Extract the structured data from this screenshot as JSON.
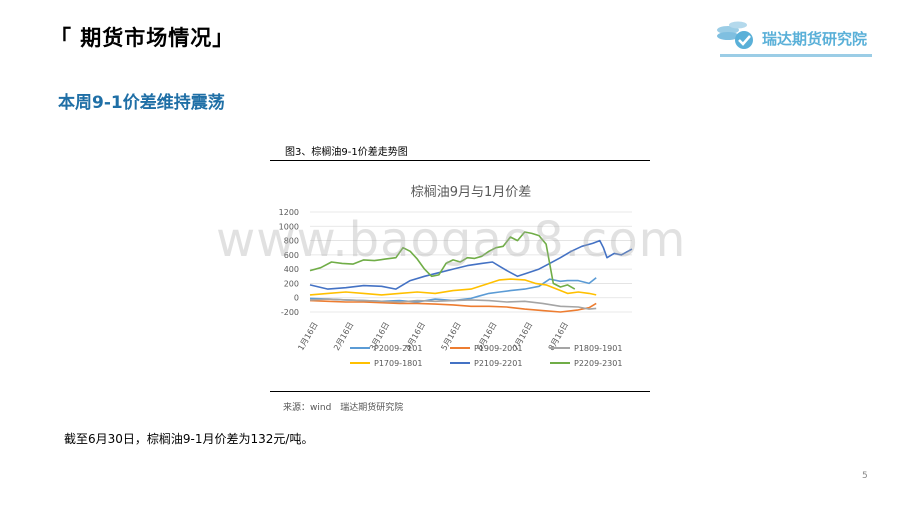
{
  "header": {
    "title": "「 期货市场情况」"
  },
  "logo": {
    "text": "瑞达期货研究院",
    "icon": "coins-check-icon",
    "color": "#5ab0d8"
  },
  "section": {
    "title": "本周9-1价差维持震荡"
  },
  "figure": {
    "caption": "图3、棕榈油9-1价差走势图",
    "source": "来源：wind　瑞达期货研究院"
  },
  "conclusion": "截至6月30日，棕榈油9-1月价差为132元/吨。",
  "page_number": "5",
  "watermark": "www.baogao8.com",
  "chart_data": {
    "type": "line",
    "title": "棕榈油9月与1月价差",
    "ylim": [
      -200,
      1200
    ],
    "yticks": [
      -200,
      0,
      200,
      400,
      600,
      800,
      1000,
      1200
    ],
    "x_tick_labels": [
      "1月16日",
      "2月16日",
      "3月16日",
      "4月16日",
      "5月16日",
      "6月16日",
      "7月16日",
      "8月16日"
    ],
    "x_count": 8,
    "legend_position": "bottom",
    "series": [
      {
        "name": "P2009-2101",
        "color": "#5b9bd5",
        "points": [
          [
            0,
            -10
          ],
          [
            0.5,
            -20
          ],
          [
            1,
            -30
          ],
          [
            1.5,
            -40
          ],
          [
            2,
            -50
          ],
          [
            2.5,
            -40
          ],
          [
            3,
            -60
          ],
          [
            3.5,
            -20
          ],
          [
            4,
            -40
          ],
          [
            4.5,
            -10
          ],
          [
            4.7,
            20
          ],
          [
            5,
            60
          ],
          [
            5.3,
            80
          ],
          [
            5.6,
            100
          ],
          [
            6,
            120
          ],
          [
            6.4,
            160
          ],
          [
            6.7,
            260
          ],
          [
            7,
            230
          ],
          [
            7.2,
            240
          ],
          [
            7.5,
            240
          ],
          [
            7.8,
            200
          ],
          [
            8,
            280
          ]
        ]
      },
      {
        "name": "P1909-2001",
        "color": "#ed7d31",
        "points": [
          [
            0,
            -40
          ],
          [
            0.5,
            -50
          ],
          [
            1,
            -60
          ],
          [
            1.5,
            -60
          ],
          [
            2,
            -70
          ],
          [
            2.5,
            -80
          ],
          [
            3,
            -80
          ],
          [
            3.5,
            -90
          ],
          [
            4,
            -100
          ],
          [
            4.5,
            -120
          ],
          [
            5,
            -120
          ],
          [
            5.5,
            -130
          ],
          [
            6,
            -160
          ],
          [
            6.5,
            -180
          ],
          [
            7,
            -200
          ],
          [
            7.5,
            -170
          ],
          [
            7.8,
            -140
          ],
          [
            8,
            -80
          ]
        ]
      },
      {
        "name": "P1809-1901",
        "color": "#a5a5a5",
        "points": [
          [
            0,
            -30
          ],
          [
            0.5,
            -20
          ],
          [
            1,
            -30
          ],
          [
            1.5,
            -40
          ],
          [
            2,
            -50
          ],
          [
            2.5,
            -60
          ],
          [
            3,
            -40
          ],
          [
            3.5,
            -50
          ],
          [
            4,
            -40
          ],
          [
            4.5,
            -30
          ],
          [
            5,
            -40
          ],
          [
            5.5,
            -60
          ],
          [
            6,
            -50
          ],
          [
            6.5,
            -80
          ],
          [
            7,
            -120
          ],
          [
            7.5,
            -130
          ],
          [
            7.8,
            -160
          ],
          [
            8,
            -150
          ]
        ]
      },
      {
        "name": "P1709-1801",
        "color": "#ffc000",
        "points": [
          [
            0,
            40
          ],
          [
            0.5,
            60
          ],
          [
            1,
            80
          ],
          [
            1.5,
            60
          ],
          [
            2,
            40
          ],
          [
            2.5,
            60
          ],
          [
            3,
            80
          ],
          [
            3.5,
            60
          ],
          [
            4,
            100
          ],
          [
            4.5,
            120
          ],
          [
            5,
            200
          ],
          [
            5.3,
            250
          ],
          [
            5.6,
            260
          ],
          [
            6,
            250
          ],
          [
            6.3,
            200
          ],
          [
            6.6,
            180
          ],
          [
            6.9,
            120
          ],
          [
            7.2,
            60
          ],
          [
            7.5,
            80
          ],
          [
            7.8,
            60
          ],
          [
            8,
            40
          ]
        ]
      },
      {
        "name": "P2109-2201",
        "color": "#4472c4",
        "points": [
          [
            0,
            180
          ],
          [
            0.5,
            120
          ],
          [
            1,
            140
          ],
          [
            1.5,
            170
          ],
          [
            2,
            160
          ],
          [
            2.4,
            120
          ],
          [
            2.8,
            240
          ],
          [
            3.2,
            300
          ],
          [
            3.6,
            350
          ],
          [
            4,
            400
          ],
          [
            4.4,
            450
          ],
          [
            4.8,
            480
          ],
          [
            5.1,
            500
          ],
          [
            5.3,
            440
          ],
          [
            5.5,
            380
          ],
          [
            5.8,
            300
          ],
          [
            6.1,
            350
          ],
          [
            6.4,
            400
          ],
          [
            6.7,
            480
          ],
          [
            7,
            560
          ],
          [
            7.3,
            650
          ],
          [
            7.6,
            720
          ],
          [
            7.9,
            760
          ],
          [
            8.1,
            800
          ],
          [
            8.2,
            700
          ],
          [
            8.3,
            560
          ],
          [
            8.5,
            620
          ],
          [
            8.7,
            600
          ],
          [
            9,
            680
          ]
        ]
      },
      {
        "name": "P2209-2301",
        "color": "#70ad47",
        "points": [
          [
            0,
            380
          ],
          [
            0.3,
            420
          ],
          [
            0.6,
            500
          ],
          [
            0.9,
            480
          ],
          [
            1.2,
            470
          ],
          [
            1.5,
            530
          ],
          [
            1.8,
            520
          ],
          [
            2.1,
            540
          ],
          [
            2.4,
            560
          ],
          [
            2.6,
            700
          ],
          [
            2.8,
            650
          ],
          [
            3,
            540
          ],
          [
            3.2,
            400
          ],
          [
            3.4,
            300
          ],
          [
            3.6,
            320
          ],
          [
            3.8,
            480
          ],
          [
            4,
            530
          ],
          [
            4.2,
            500
          ],
          [
            4.4,
            560
          ],
          [
            4.6,
            550
          ],
          [
            4.8,
            580
          ],
          [
            5,
            650
          ],
          [
            5.2,
            700
          ],
          [
            5.4,
            720
          ],
          [
            5.6,
            850
          ],
          [
            5.8,
            800
          ],
          [
            6,
            920
          ],
          [
            6.2,
            900
          ],
          [
            6.4,
            870
          ],
          [
            6.6,
            750
          ],
          [
            6.8,
            200
          ],
          [
            7,
            150
          ],
          [
            7.2,
            180
          ],
          [
            7.4,
            120
          ]
        ]
      }
    ]
  }
}
